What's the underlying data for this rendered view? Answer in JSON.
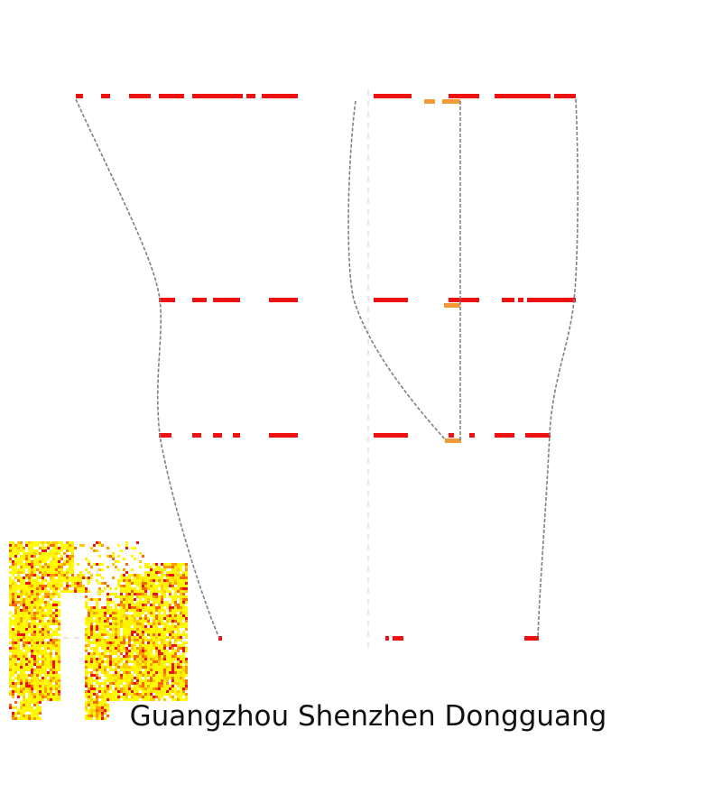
{
  "caption": "Guangzhou Shenzhen Dongguang",
  "colors": {
    "primary": "#ee1111",
    "secondary": "#f39a38",
    "connector": "#808080",
    "guide": "#d0d0d0"
  }
}
